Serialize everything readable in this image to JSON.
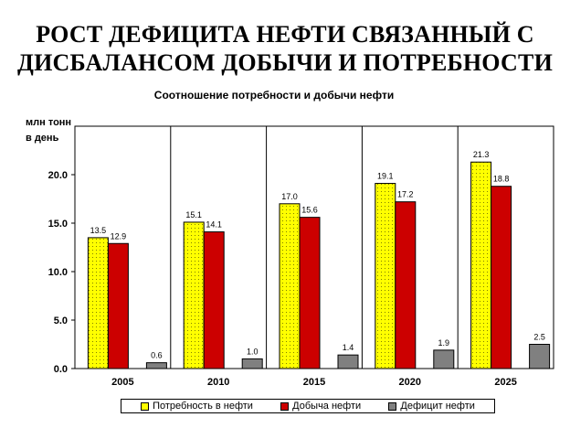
{
  "slide": {
    "title_line1": "РОСТ ДЕФИЦИТА НЕФТИ СВЯЗАННЫЙ С",
    "title_line2": "ДИСБАЛАНСОМ ДОБЫЧИ И ПОТРЕБНОСТИ"
  },
  "chart_data": {
    "type": "bar",
    "title": "Соотношение потребности и добычи нефти",
    "ylabel_line1": "млн тонн",
    "ylabel_line2": "в день",
    "categories": [
      "2005",
      "2010",
      "2015",
      "2020",
      "2025"
    ],
    "series": [
      {
        "name": "Потребность в нефти",
        "color": "#ffff00",
        "pattern": "dotted",
        "values": [
          13.5,
          15.1,
          17.0,
          19.1,
          21.3
        ]
      },
      {
        "name": "Добыча нефти",
        "color": "#cc0000",
        "pattern": "solid",
        "values": [
          12.9,
          14.1,
          15.6,
          17.2,
          18.8
        ]
      },
      {
        "name": "Дефицит нефти",
        "color": "#808080",
        "pattern": "solid",
        "values": [
          0.6,
          1.0,
          1.4,
          1.9,
          2.5
        ]
      }
    ],
    "ylim": [
      0,
      25
    ],
    "yticks": [
      0.0,
      5.0,
      10.0,
      15.0,
      20.0
    ],
    "ytick_labels": [
      "0.0",
      "5.0",
      "10.0",
      "15.0",
      "20.0"
    ],
    "grid": "vertical lines between categories",
    "legend_position": "bottom"
  }
}
